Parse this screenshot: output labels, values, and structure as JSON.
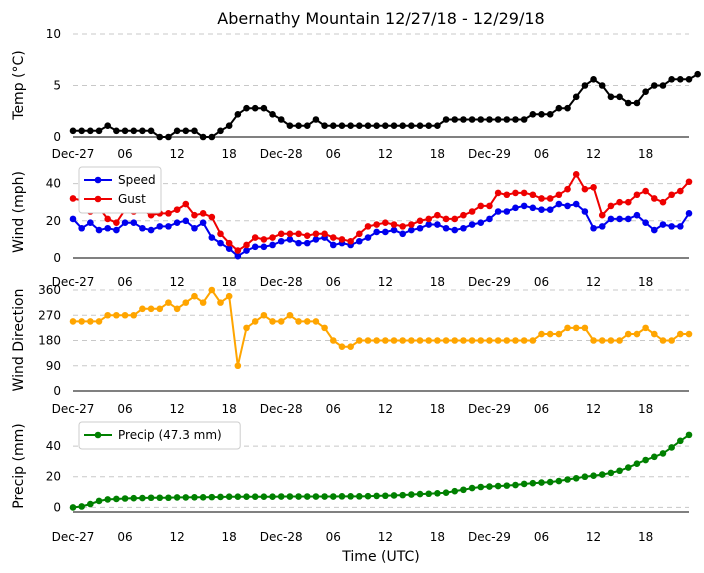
{
  "chart_data": {
    "type": "line",
    "title": "Abernathy Mountain 12/27/18 - 12/29/18",
    "xlabel": "Time (UTC)",
    "time_start": "2018-12-27T00:00Z",
    "time_step_hours": 1,
    "x_ticks": [
      {
        "hour": 0,
        "label": "Dec-27"
      },
      {
        "hour": 6,
        "label": "06"
      },
      {
        "hour": 12,
        "label": "12"
      },
      {
        "hour": 18,
        "label": "18"
      },
      {
        "hour": 24,
        "label": "Dec-28"
      },
      {
        "hour": 30,
        "label": "06"
      },
      {
        "hour": 36,
        "label": "12"
      },
      {
        "hour": 42,
        "label": "18"
      },
      {
        "hour": 48,
        "label": "Dec-29"
      },
      {
        "hour": 54,
        "label": "06"
      },
      {
        "hour": 60,
        "label": "12"
      },
      {
        "hour": 66,
        "label": "18"
      }
    ],
    "panels": [
      {
        "id": "temp",
        "ylabel": "Temp (°C)",
        "ylim": [
          0,
          10
        ],
        "yticks": [
          "0",
          "5",
          "10"
        ],
        "legend": null,
        "series": [
          {
            "name": "Temp",
            "color": "#000000",
            "values": [
              0.6,
              0.6,
              0.6,
              0.6,
              1.1,
              0.6,
              0.6,
              0.6,
              0.6,
              0.6,
              0,
              0,
              0.6,
              0.6,
              0.6,
              0,
              0,
              0.6,
              1.1,
              2.2,
              2.8,
              2.8,
              2.8,
              2.2,
              1.7,
              1.1,
              1.1,
              1.1,
              1.7,
              1.1,
              1.1,
              1.1,
              1.1,
              1.1,
              1.1,
              1.1,
              1.1,
              1.1,
              1.1,
              1.1,
              1.1,
              1.1,
              1.1,
              1.7,
              1.7,
              1.7,
              1.7,
              1.7,
              1.7,
              1.7,
              1.7,
              1.7,
              1.7,
              2.2,
              2.2,
              2.2,
              2.8,
              2.8,
              3.9,
              5.0,
              5.6,
              5.0,
              3.9,
              3.9,
              3.3,
              3.3,
              4.4,
              5.0,
              5.0,
              5.6,
              5.6,
              5.6,
              6.1
            ]
          }
        ]
      },
      {
        "id": "wind",
        "ylabel": "Wind (mph)",
        "ylim": [
          0,
          50
        ],
        "yticks": [
          "0",
          "20",
          "40"
        ],
        "legend": "top-left",
        "series": [
          {
            "name": "Speed",
            "color": "#0000ee",
            "values": [
              21,
              16,
              19,
              15,
              16,
              15,
              19,
              19,
              16,
              15,
              17,
              17,
              19,
              20,
              16,
              19,
              11,
              8,
              5,
              1,
              4,
              6,
              6,
              7,
              9,
              10,
              8,
              8,
              10,
              11,
              7,
              8,
              7,
              9,
              11,
              14,
              14,
              15,
              13,
              15,
              16,
              18,
              18,
              16,
              15,
              16,
              18,
              19,
              21,
              25,
              25,
              27,
              28,
              27,
              26,
              26,
              29,
              28,
              29,
              25,
              16,
              17,
              21,
              21,
              21,
              23,
              19,
              15,
              18,
              17,
              17,
              24
            ]
          },
          {
            "name": "Gust",
            "color": "#ee0000",
            "values": [
              32,
              31,
              25,
              27,
              21,
              19,
              26,
              25,
              26,
              23,
              24,
              24,
              26,
              29,
              23,
              24,
              22,
              13,
              8,
              4,
              7,
              11,
              10,
              11,
              13,
              13,
              13,
              12,
              13,
              13,
              11,
              10,
              9,
              13,
              17,
              18,
              19,
              18,
              17,
              18,
              20,
              21,
              23,
              21,
              21,
              23,
              25,
              28,
              28,
              35,
              34,
              35,
              35,
              34,
              32,
              32,
              34,
              37,
              45,
              37,
              38,
              23,
              28,
              30,
              30,
              34,
              36,
              32,
              30,
              34,
              36,
              41
            ]
          }
        ]
      },
      {
        "id": "wdir",
        "ylabel": "Wind Direction",
        "ylim": [
          0,
          360
        ],
        "yticks": [
          "0",
          "90",
          "180",
          "270",
          "360"
        ],
        "legend": null,
        "series": [
          {
            "name": "Direction",
            "color": "#ffa500",
            "values": [
              248,
              248,
              248,
              248,
              270,
              270,
              270,
              270,
              293,
              293,
              293,
              315,
              293,
              315,
              338,
              315,
              360,
              315,
              338,
              90,
              225,
              248,
              270,
              248,
              248,
              270,
              248,
              248,
              248,
              225,
              180,
              158,
              158,
              180,
              180,
              180,
              180,
              180,
              180,
              180,
              180,
              180,
              180,
              180,
              180,
              180,
              180,
              180,
              180,
              180,
              180,
              180,
              180,
              180,
              203,
              203,
              203,
              225,
              225,
              225,
              180,
              180,
              180,
              180,
              203,
              203,
              225,
              203,
              180,
              180,
              203,
              203
            ]
          }
        ]
      },
      {
        "id": "precip",
        "ylabel": "Precip (mm)",
        "ylim": [
          -3,
          57
        ],
        "yticks": [
          "0",
          "20",
          "40"
        ],
        "legend": "top-left",
        "series": [
          {
            "name": "Precip (47.3 mm)",
            "color": "#008000",
            "values": [
              0,
              0.6,
              2.2,
              4.2,
              5.2,
              5.5,
              5.8,
              6.0,
              6.1,
              6.3,
              6.3,
              6.3,
              6.5,
              6.5,
              6.6,
              6.6,
              6.7,
              6.8,
              7.0,
              7.0,
              7.0,
              7.0,
              7.0,
              7.0,
              7.1,
              7.1,
              7.1,
              7.1,
              7.1,
              7.1,
              7.1,
              7.2,
              7.2,
              7.2,
              7.3,
              7.5,
              7.6,
              7.8,
              8.0,
              8.4,
              8.7,
              8.9,
              9.2,
              9.6,
              10.6,
              11.5,
              12.6,
              13.3,
              13.6,
              13.9,
              14.2,
              14.6,
              15.3,
              15.8,
              16.2,
              16.5,
              17.2,
              18.2,
              19.0,
              20.0,
              20.7,
              21.4,
              22.5,
              23.9,
              26.0,
              28.5,
              30.9,
              33.0,
              35.2,
              39.1,
              43.4,
              47.3
            ]
          }
        ]
      }
    ]
  }
}
